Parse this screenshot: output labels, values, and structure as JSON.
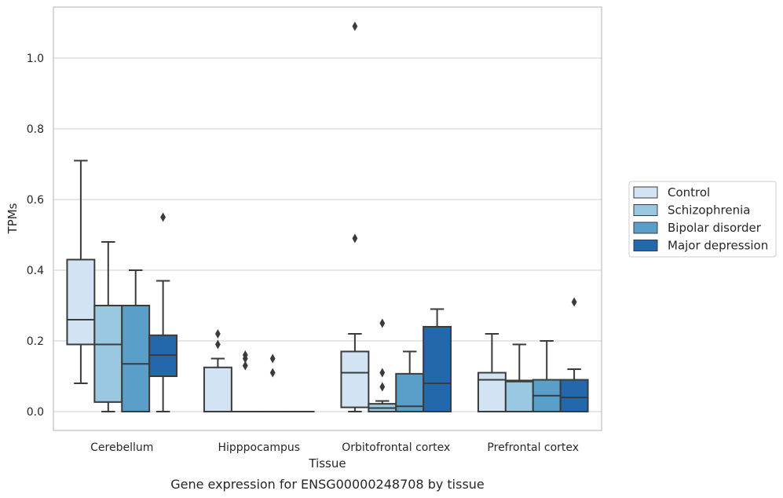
{
  "chart_data": {
    "type": "box",
    "xlabel": "Tissue",
    "ylabel": "TPMs",
    "caption": "Gene expression for ENSG00000248708 by tissue",
    "ylim": [
      -0.05,
      1.15
    ],
    "yticks": [
      "0.0",
      "0.2",
      "0.4",
      "0.6",
      "0.8",
      "1.0"
    ],
    "grid": "horizontal",
    "legend_position": "right",
    "categories": [
      "Cerebellum",
      "Hipppocampus",
      "Orbitofrontal cortex",
      "Prefrontal cortex"
    ],
    "series": [
      {
        "name": "Control",
        "color": "#d2e3f3",
        "boxes": [
          {
            "whislo": 0.08,
            "q1": 0.19,
            "med": 0.26,
            "q3": 0.43,
            "whishi": 0.71,
            "fliers": []
          },
          {
            "whislo": 0.0,
            "q1": 0.0,
            "med": 0.0,
            "q3": 0.125,
            "whishi": 0.15,
            "fliers": [
              0.22,
              0.19
            ]
          },
          {
            "whislo": 0.0,
            "q1": 0.012,
            "med": 0.11,
            "q3": 0.17,
            "whishi": 0.22,
            "fliers": [
              1.09,
              0.49
            ]
          },
          {
            "whislo": 0.0,
            "q1": 0.0,
            "med": 0.09,
            "q3": 0.11,
            "whishi": 0.22,
            "fliers": []
          }
        ]
      },
      {
        "name": "Schizophrenia",
        "color": "#9ac8e0",
        "boxes": [
          {
            "whislo": 0.0,
            "q1": 0.027,
            "med": 0.19,
            "q3": 0.3,
            "whishi": 0.48,
            "fliers": []
          },
          {
            "whislo": 0.0,
            "q1": 0.0,
            "med": 0.0,
            "q3": 0.0,
            "whishi": 0.0,
            "fliers": [
              0.16,
              0.15,
              0.13
            ]
          },
          {
            "whislo": 0.0,
            "q1": 0.0,
            "med": 0.01,
            "q3": 0.022,
            "whishi": 0.03,
            "fliers": [
              0.25,
              0.11,
              0.07
            ]
          },
          {
            "whislo": 0.0,
            "q1": 0.0,
            "med": 0.085,
            "q3": 0.088,
            "whishi": 0.19,
            "fliers": []
          }
        ]
      },
      {
        "name": "Bipolar disorder",
        "color": "#5a9fca",
        "boxes": [
          {
            "whislo": 0.0,
            "q1": 0.0,
            "med": 0.135,
            "q3": 0.3,
            "whishi": 0.4,
            "fliers": []
          },
          {
            "whislo": 0.0,
            "q1": 0.0,
            "med": 0.0,
            "q3": 0.0,
            "whishi": 0.0,
            "fliers": [
              0.15,
              0.11
            ]
          },
          {
            "whislo": 0.0,
            "q1": 0.0,
            "med": 0.015,
            "q3": 0.107,
            "whishi": 0.17,
            "fliers": []
          },
          {
            "whislo": 0.0,
            "q1": 0.0,
            "med": 0.045,
            "q3": 0.09,
            "whishi": 0.2,
            "fliers": []
          }
        ]
      },
      {
        "name": "Major depression",
        "color": "#2268ab",
        "boxes": [
          {
            "whislo": 0.0,
            "q1": 0.1,
            "med": 0.16,
            "q3": 0.216,
            "whishi": 0.37,
            "fliers": [
              0.55
            ]
          },
          {
            "whislo": 0.0,
            "q1": 0.0,
            "med": 0.0,
            "q3": 0.0,
            "whishi": 0.0,
            "fliers": []
          },
          {
            "whislo": 0.0,
            "q1": 0.0,
            "med": 0.08,
            "q3": 0.24,
            "whishi": 0.29,
            "fliers": []
          },
          {
            "whislo": 0.0,
            "q1": 0.0,
            "med": 0.04,
            "q3": 0.09,
            "whishi": 0.12,
            "fliers": [
              0.31
            ]
          }
        ]
      }
    ]
  }
}
